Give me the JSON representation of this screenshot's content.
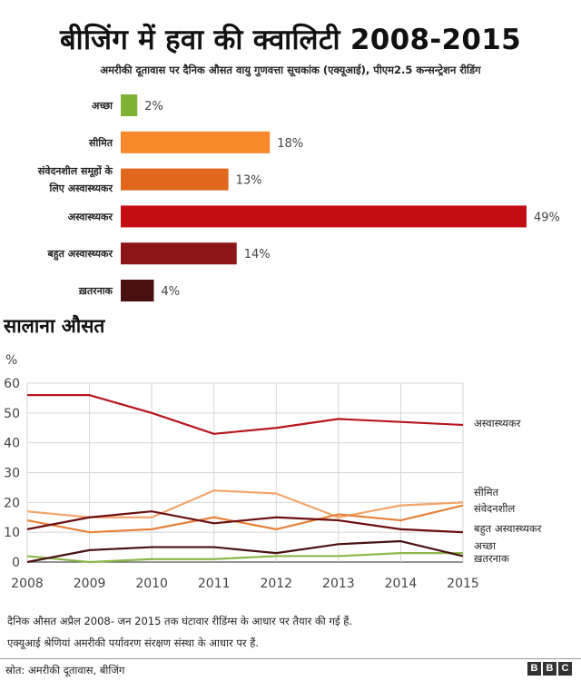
{
  "title": "बीजिंग में हवा की क्वालिटी 2008-2015",
  "subtitle": "अमरीकी दूतावास पर दैनिक औसत वायु गुणवत्ता सूचकांक (एक्यूआई), पीएम2.5 कन्सन्ट्रेशन रीडिंग",
  "section_title": "सालाना औसत",
  "footnote_1": "दैनिक औसत अप्रैल 2008- जन 2015 तक घंटावार रीडिंग्स के आधार पर तैयार की गई हैं.",
  "footnote_2": "एक्यूआई श्रेणियां अमरीकी पर्यावरण संरक्षण संस्था के आधार पर हैं.",
  "source": "स्रोत: अमरीकी दूतावास, बीजिंग",
  "logo": [
    "B",
    "B",
    "C"
  ],
  "chart_data": [
    {
      "type": "bar",
      "orientation": "horizontal",
      "categories": [
        {
          "label": [
            "अच्छा"
          ],
          "value": 2,
          "value_label": "2%",
          "color": "#7fb135"
        },
        {
          "label": [
            "सीमित"
          ],
          "value": 18,
          "value_label": "18%",
          "color": "#f7892a"
        },
        {
          "label": [
            "संवेदनशील समूहों के",
            "लिए अस्वास्थ्यकर"
          ],
          "value": 13,
          "value_label": "13%",
          "color": "#e0671b"
        },
        {
          "label": [
            "अस्वास्थ्यकर"
          ],
          "value": 49,
          "value_label": "49%",
          "color": "#c40d13"
        },
        {
          "label": [
            "बहुत अस्वास्थ्यकर"
          ],
          "value": 14,
          "value_label": "14%",
          "color": "#8c1515"
        },
        {
          "label": [
            "ख़तरनाक"
          ],
          "value": 4,
          "value_label": "4%",
          "color": "#4a0f0f"
        }
      ],
      "xlim": [
        0,
        49
      ]
    },
    {
      "type": "line",
      "ylabel": "%",
      "x": [
        2008,
        2009,
        2010,
        2011,
        2012,
        2013,
        2014,
        2015
      ],
      "x_ticks": [
        "2008",
        "2009",
        "2010",
        "2011",
        "2012",
        "2013",
        "2014",
        "2015"
      ],
      "y_ticks": [
        "0",
        "10",
        "20",
        "30",
        "40",
        "50",
        "60"
      ],
      "ylim": [
        0,
        60
      ],
      "grid": true,
      "series": [
        {
          "name": "अस्वास्थ्यकर",
          "color": "#b5171c",
          "values": [
            56,
            56,
            50,
            43,
            45,
            48,
            47,
            46
          ]
        },
        {
          "name": "सीमित",
          "color": "#f3a56b",
          "values": [
            17,
            15,
            15,
            24,
            23,
            15,
            19,
            20
          ]
        },
        {
          "name": "संवेदनशील",
          "color": "#e5833a",
          "values": [
            14,
            10,
            11,
            15,
            11,
            16,
            14,
            19
          ]
        },
        {
          "name": "बहुत अस्वास्थ्यकर",
          "color": "#6b1010",
          "values": [
            11,
            15,
            17,
            13,
            15,
            14,
            11,
            10
          ]
        },
        {
          "name": "अच्छा",
          "color": "#8bb84a",
          "values": [
            2,
            0,
            1,
            1,
            2,
            2,
            3,
            3
          ]
        },
        {
          "name": "ख़तरनाक",
          "color": "#4a1212",
          "values": [
            0,
            4,
            5,
            5,
            3,
            6,
            7,
            2
          ]
        }
      ]
    }
  ]
}
